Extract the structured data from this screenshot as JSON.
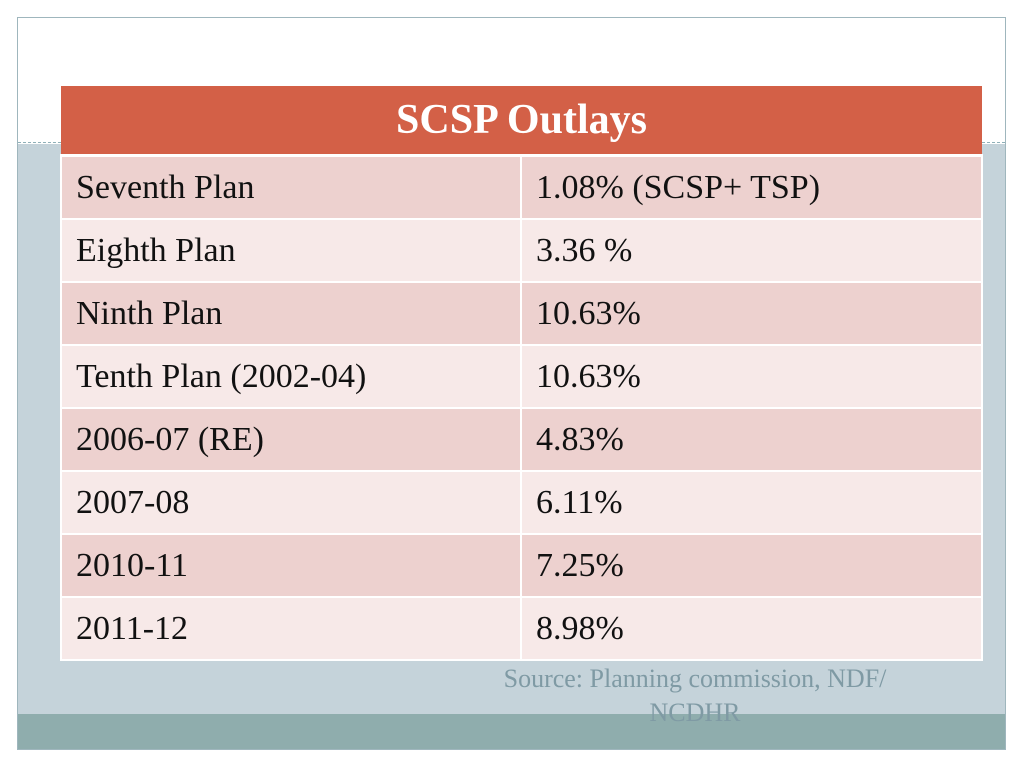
{
  "table": {
    "title": "SCSP Outlays",
    "rows": [
      {
        "label": "Seventh Plan",
        "value": "1.08% (SCSP+ TSP)"
      },
      {
        "label": "Eighth Plan",
        "value": "3.36 %"
      },
      {
        "label": "Ninth Plan",
        "value": "10.63%"
      },
      {
        "label": "Tenth Plan (2002-04)",
        "value": "10.63%"
      },
      {
        "label": "2006-07 (RE)",
        "value": "4.83%"
      },
      {
        "label": "2007-08",
        "value": "6.11%"
      },
      {
        "label": "2010-11",
        "value": "7.25%"
      },
      {
        "label": "2011-12",
        "value": "8.98%"
      }
    ]
  },
  "source": {
    "line1": "Source: Planning commission, NDF/",
    "line2": "NCDHR"
  },
  "colors": {
    "header": "#d36047",
    "row_odd": "#edd1cf",
    "row_even": "#f7e9e8",
    "background_band": "#c5d3da",
    "footer_band": "#8fadad"
  }
}
